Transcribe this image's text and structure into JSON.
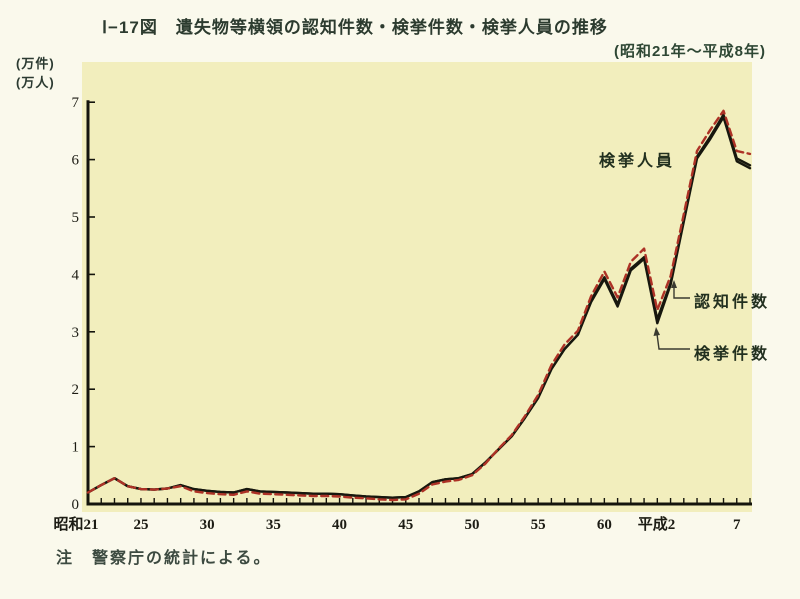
{
  "page": {
    "title": "Ⅰ−17図　遺失物等横領の認知件数・検挙件数・検挙人員の推移",
    "subtitle": "(昭和21年〜平成8年)",
    "unit_label_cases": "(万件)",
    "unit_label_persons": "(万人)",
    "note": "注　警察庁の統計による。"
  },
  "chart_data": {
    "type": "line",
    "title": "遺失物等横領の認知件数・検挙件数・検挙人員の推移",
    "subtitle": "昭和21年〜平成8年",
    "ylabel": "(万件)(万人)",
    "xlabel": "",
    "ylim": [
      0,
      7
    ],
    "xlim": [
      1946,
      1996
    ],
    "grid": false,
    "legend_position": "in-plot annotations",
    "plot_background": "#f2eebd",
    "y_ticks": [
      0,
      1,
      2,
      3,
      4,
      5,
      6,
      7
    ],
    "x_ticks": [
      {
        "year": 1946,
        "label": "昭和21"
      },
      {
        "year": 1950,
        "label": "25"
      },
      {
        "year": 1955,
        "label": "30"
      },
      {
        "year": 1960,
        "label": "35"
      },
      {
        "year": 1965,
        "label": "40"
      },
      {
        "year": 1970,
        "label": "45"
      },
      {
        "year": 1975,
        "label": "50"
      },
      {
        "year": 1980,
        "label": "55"
      },
      {
        "year": 1985,
        "label": "60"
      },
      {
        "year": 1990,
        "label": "平成2"
      },
      {
        "year": 1995,
        "label": "7"
      }
    ],
    "x": [
      1946,
      1947,
      1948,
      1949,
      1950,
      1951,
      1952,
      1953,
      1954,
      1955,
      1956,
      1957,
      1958,
      1959,
      1960,
      1961,
      1962,
      1963,
      1964,
      1965,
      1966,
      1967,
      1968,
      1969,
      1970,
      1971,
      1972,
      1973,
      1974,
      1975,
      1976,
      1977,
      1978,
      1979,
      1980,
      1981,
      1982,
      1983,
      1984,
      1985,
      1986,
      1987,
      1988,
      1989,
      1990,
      1991,
      1992,
      1993,
      1994,
      1995,
      1996
    ],
    "series": [
      {
        "name": "認知件数",
        "style": "solid",
        "color": "#17170e",
        "values": [
          0.2,
          0.33,
          0.45,
          0.31,
          0.26,
          0.25,
          0.27,
          0.33,
          0.26,
          0.23,
          0.21,
          0.2,
          0.26,
          0.22,
          0.21,
          0.2,
          0.19,
          0.18,
          0.18,
          0.17,
          0.15,
          0.13,
          0.12,
          0.11,
          0.12,
          0.22,
          0.38,
          0.43,
          0.45,
          0.52,
          0.72,
          0.95,
          1.18,
          1.5,
          1.85,
          2.35,
          2.7,
          2.95,
          3.55,
          3.95,
          3.48,
          4.1,
          4.3,
          3.22,
          3.85,
          4.95,
          6.05,
          6.4,
          6.78,
          6.02,
          5.9
        ]
      },
      {
        "name": "検挙件数",
        "style": "solid",
        "color": "#17170e",
        "values": [
          0.2,
          0.33,
          0.45,
          0.31,
          0.26,
          0.25,
          0.27,
          0.33,
          0.26,
          0.23,
          0.21,
          0.2,
          0.26,
          0.22,
          0.21,
          0.2,
          0.19,
          0.18,
          0.18,
          0.17,
          0.15,
          0.13,
          0.12,
          0.11,
          0.12,
          0.22,
          0.38,
          0.43,
          0.45,
          0.52,
          0.72,
          0.95,
          1.18,
          1.5,
          1.85,
          2.35,
          2.7,
          2.95,
          3.52,
          3.92,
          3.44,
          4.07,
          4.27,
          3.15,
          3.82,
          4.92,
          6.02,
          6.36,
          6.74,
          5.97,
          5.85
        ]
      },
      {
        "name": "検挙人員",
        "style": "dashed",
        "color": "#ad3226",
        "values": [
          0.2,
          0.33,
          0.45,
          0.31,
          0.26,
          0.25,
          0.27,
          0.31,
          0.22,
          0.19,
          0.17,
          0.16,
          0.22,
          0.18,
          0.17,
          0.16,
          0.15,
          0.14,
          0.14,
          0.13,
          0.11,
          0.1,
          0.08,
          0.07,
          0.08,
          0.18,
          0.34,
          0.39,
          0.42,
          0.5,
          0.7,
          0.96,
          1.2,
          1.53,
          1.9,
          2.42,
          2.78,
          3.02,
          3.62,
          4.05,
          3.6,
          4.22,
          4.45,
          3.38,
          3.97,
          5.05,
          6.15,
          6.52,
          6.85,
          6.15,
          6.1
        ]
      }
    ],
    "annotations": [
      {
        "label": "検挙人員",
        "points_to": "検挙人員 series (red dashed)",
        "arrow": false
      },
      {
        "label": "認知件数",
        "points_to": "rising solid line at 平成2",
        "arrow": true
      },
      {
        "label": "検挙件数",
        "points_to": "dip of solid line at 平成元",
        "arrow": true
      }
    ]
  },
  "colors": {
    "page_background": "#faf9ec",
    "plot_background": "#f2eebd",
    "axis": "#14140c",
    "solid_line": "#17170e",
    "dashed_line": "#ad3226",
    "title_text": "#2c3b2f"
  }
}
